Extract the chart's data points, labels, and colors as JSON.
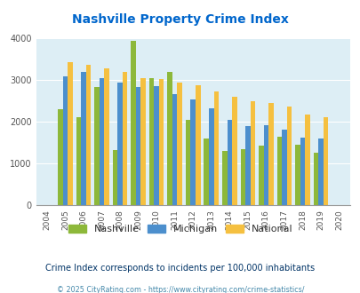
{
  "title": "Nashville Property Crime Index",
  "years": [
    2004,
    2005,
    2006,
    2007,
    2008,
    2009,
    2010,
    2011,
    2012,
    2013,
    2014,
    2015,
    2016,
    2017,
    2018,
    2019,
    2020
  ],
  "nashville": [
    null,
    2300,
    2100,
    2820,
    1320,
    3940,
    3040,
    3200,
    2040,
    1600,
    1300,
    1340,
    1420,
    1640,
    1440,
    1260,
    null
  ],
  "michigan": [
    null,
    3080,
    3200,
    3050,
    2940,
    2820,
    2840,
    2650,
    2540,
    2320,
    2040,
    1890,
    1910,
    1800,
    1620,
    1590,
    null
  ],
  "national": [
    null,
    3420,
    3350,
    3280,
    3200,
    3040,
    3020,
    2930,
    2870,
    2720,
    2590,
    2490,
    2450,
    2370,
    2170,
    2100,
    null
  ],
  "nashville_color": "#8db83a",
  "michigan_color": "#4c8fcd",
  "national_color": "#f5c040",
  "bg_color": "#ddeef5",
  "ylim": [
    0,
    4000
  ],
  "yticks": [
    0,
    1000,
    2000,
    3000,
    4000
  ],
  "legend_labels": [
    "Nashville",
    "Michigan",
    "National"
  ],
  "subtitle": "Crime Index corresponds to incidents per 100,000 inhabitants",
  "footer": "© 2025 CityRating.com - https://www.cityrating.com/crime-statistics/",
  "title_color": "#0066cc",
  "subtitle_color": "#003366",
  "footer_color": "#4488aa"
}
